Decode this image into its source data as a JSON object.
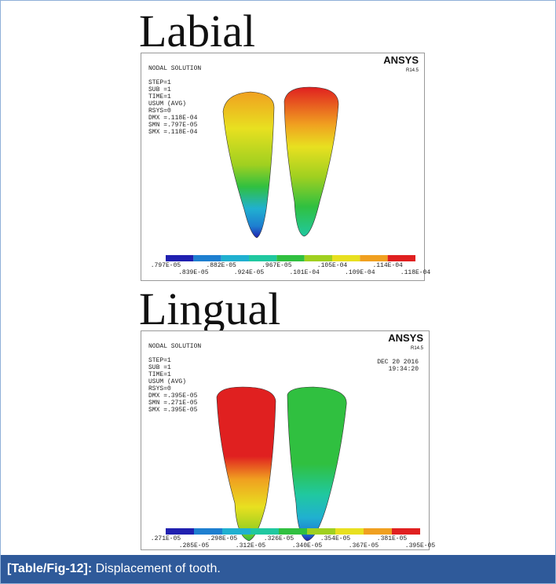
{
  "figure": {
    "panels": [
      {
        "title": "Labial",
        "header": "NODAL SOLUTION",
        "logo": "ANSYS",
        "version": "R14.5",
        "info": [
          "STEP=1",
          "SUB =1",
          "TIME=1",
          "USUM       (AVG)",
          "RSYS=0",
          "DMX =.118E-04",
          "SMN =.797E-05",
          "SMX =.118E-04"
        ],
        "legend_top": [
          ".797E-05",
          ".882E-05",
          ".967E-05",
          ".105E-04",
          ".114E-04"
        ],
        "legend_bottom": [
          ".839E-05",
          ".924E-05",
          ".101E-04",
          ".109E-04",
          ".118E-04"
        ]
      },
      {
        "title": "Lingual",
        "header": "NODAL SOLUTION",
        "logo": "ANSYS",
        "version": "R14.5",
        "date": "DEC 20 2016",
        "time": "19:34:20",
        "info": [
          "STEP=1",
          "SUB =1",
          "TIME=1",
          "USUM       (AVG)",
          "RSYS=0",
          "DMX =.395E-05",
          "SMN =.271E-05",
          "SMX =.395E-05"
        ],
        "legend_top": [
          ".271E-05",
          ".298E-05",
          ".326E-05",
          ".354E-05",
          ".381E-05"
        ],
        "legend_bottom": [
          ".285E-05",
          ".312E-05",
          ".340E-05",
          ".367E-05",
          ".395E-05"
        ]
      }
    ],
    "caption": {
      "label": "[Table/Fig-12]:",
      "text": "Displacement of tooth."
    }
  }
}
